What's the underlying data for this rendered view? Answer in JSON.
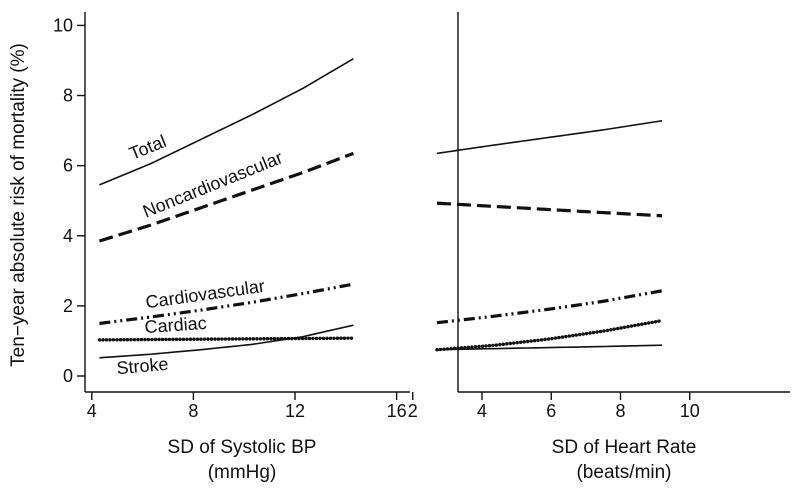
{
  "chart_data": [
    {
      "type": "line",
      "panel": "left",
      "title": "",
      "xlabel": "SD of Systolic BP",
      "xlabel_unit": "(mmHg)",
      "ylabel": "Ten−year absolute risk of mortality (%)",
      "xlim": [
        3.5,
        16.5
      ],
      "ylim": [
        -0.3,
        10.3
      ],
      "xticks": [
        4,
        8,
        12,
        16
      ],
      "yticks": [
        0,
        2,
        4,
        6,
        8,
        10
      ],
      "grid": false,
      "series": [
        {
          "name": "Total",
          "style": "solid",
          "x": [
            4.3,
            6.3,
            8.3,
            10.3,
            12.3,
            14.3
          ],
          "y": [
            5.45,
            6.05,
            6.75,
            7.45,
            8.2,
            9.05
          ]
        },
        {
          "name": "Noncardiovascular",
          "style": "dashed",
          "x": [
            4.3,
            6.3,
            8.3,
            10.3,
            12.3,
            14.3
          ],
          "y": [
            3.85,
            4.3,
            4.8,
            5.3,
            5.8,
            6.35
          ]
        },
        {
          "name": "Cardiovascular",
          "style": "dashdot",
          "x": [
            4.3,
            6.3,
            8.3,
            10.3,
            12.3,
            14.3
          ],
          "y": [
            1.5,
            1.68,
            1.88,
            2.1,
            2.35,
            2.62
          ]
        },
        {
          "name": "Cardiac",
          "style": "dotted",
          "x": [
            4.3,
            6.3,
            8.3,
            10.3,
            12.3,
            14.3
          ],
          "y": [
            1.03,
            1.04,
            1.05,
            1.06,
            1.07,
            1.08
          ]
        },
        {
          "name": "Stroke",
          "style": "solid",
          "x": [
            4.3,
            6.3,
            8.3,
            10.3,
            12.3,
            14.3
          ],
          "y": [
            0.52,
            0.62,
            0.75,
            0.9,
            1.12,
            1.45
          ]
        }
      ]
    },
    {
      "type": "line",
      "panel": "right",
      "title": "",
      "xlabel": "SD of Heart Rate",
      "xlabel_unit": "(beats/min)",
      "xlim": [
        1.7,
        10.3
      ],
      "ylim": [
        -0.3,
        10.3
      ],
      "xticks": [
        2,
        4,
        6,
        8,
        10
      ],
      "grid": false,
      "series": [
        {
          "style": "solid",
          "x": [
            2.7,
            4.3,
            5.9,
            7.5,
            9.2
          ],
          "y": [
            6.35,
            6.58,
            6.8,
            7.02,
            7.28
          ]
        },
        {
          "style": "dashed",
          "x": [
            2.7,
            4.3,
            5.9,
            7.5,
            9.2
          ],
          "y": [
            4.93,
            4.84,
            4.75,
            4.66,
            4.57
          ]
        },
        {
          "style": "dashdot",
          "x": [
            2.7,
            4.3,
            5.9,
            7.5,
            9.2
          ],
          "y": [
            1.52,
            1.7,
            1.9,
            2.13,
            2.43
          ]
        },
        {
          "style": "dotted",
          "x": [
            2.7,
            4.3,
            5.9,
            7.5,
            9.2
          ],
          "y": [
            0.75,
            0.87,
            1.05,
            1.28,
            1.58
          ]
        },
        {
          "style": "solid",
          "x": [
            2.7,
            4.3,
            5.9,
            7.5,
            9.2
          ],
          "y": [
            0.75,
            0.78,
            0.81,
            0.84,
            0.88
          ]
        }
      ]
    }
  ]
}
